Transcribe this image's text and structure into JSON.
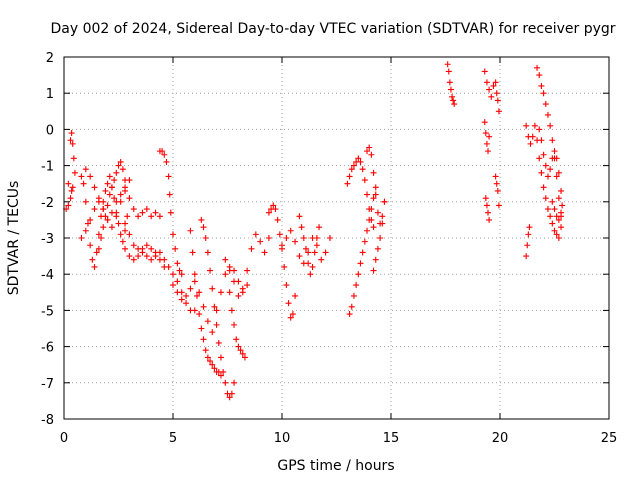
{
  "chart_data": {
    "type": "scatter",
    "title": "Day 002 of 2024, Sidereal Day-to-day VTEC variation (SDTVAR) for receiver pygr",
    "xlabel": "GPS time / hours",
    "ylabel": "SDTVAR / TECUs",
    "xlim": [
      0,
      25
    ],
    "ylim": [
      -8,
      2
    ],
    "xticks": [
      "0",
      "5",
      "10",
      "15",
      "20",
      "25"
    ],
    "yticks": [
      "2",
      "1",
      "0",
      "-1",
      "-2",
      "-3",
      "-4",
      "-5",
      "-6",
      "-7",
      "-8"
    ],
    "grid": true,
    "marker": "+",
    "color": "#ff0000",
    "series": [
      {
        "name": "s1",
        "x": [
          0.1,
          0.2,
          0.3,
          0.35,
          0.4,
          0.45,
          0.5
        ],
        "y": [
          -2.2,
          -1.5,
          -0.3,
          -0.1,
          -0.4,
          -0.8,
          -1.2
        ]
      },
      {
        "name": "s2",
        "x": [
          0.2,
          0.3,
          0.35,
          0.4
        ],
        "y": [
          -2.1,
          -1.9,
          -1.7,
          -1.6
        ]
      },
      {
        "name": "s3",
        "x": [
          0.8,
          0.9,
          1.0,
          1.1,
          1.2,
          1.3,
          1.4,
          1.5,
          1.6,
          1.7,
          1.8,
          1.9,
          2.0,
          2.1,
          2.2,
          2.3,
          2.4,
          2.5,
          2.6,
          2.7,
          2.8,
          2.9
        ],
        "y": [
          -1.3,
          -1.5,
          -2.0,
          -2.6,
          -3.2,
          -3.6,
          -3.8,
          -3.4,
          -2.9,
          -2.4,
          -2.0,
          -1.7,
          -1.5,
          -1.3,
          -1.6,
          -1.9,
          -2.3,
          -2.6,
          -2.9,
          -3.1,
          -2.8,
          -2.4
        ]
      },
      {
        "name": "s4",
        "x": [
          0.8,
          1.0,
          1.2,
          1.4,
          1.6,
          1.8,
          2.0,
          2.2,
          2.4,
          2.6,
          2.8,
          3.0
        ],
        "y": [
          -3.0,
          -2.8,
          -2.5,
          -2.2,
          -2.0,
          -2.2,
          -2.5,
          -2.7,
          -2.4,
          -2.0,
          -1.7,
          -1.4
        ]
      },
      {
        "name": "s5",
        "x": [
          1.0,
          1.2,
          1.4,
          1.6,
          1.8,
          2.0,
          2.2,
          2.4,
          2.6,
          2.8,
          3.0,
          3.2,
          3.4,
          3.6,
          3.8,
          4.0,
          4.2,
          4.4
        ],
        "y": [
          -1.1,
          -1.3,
          -1.6,
          -1.9,
          -2.2,
          -2.5,
          -2.3,
          -2.0,
          -1.8,
          -1.6,
          -1.9,
          -2.2,
          -2.4,
          -2.3,
          -2.2,
          -2.4,
          -2.3,
          -2.4
        ]
      },
      {
        "name": "s6",
        "x": [
          1.6,
          1.7,
          1.8,
          1.9,
          2.0,
          2.1,
          2.2,
          2.3,
          2.4,
          2.5,
          2.6,
          2.7,
          2.8
        ],
        "y": [
          -3.3,
          -3.0,
          -2.7,
          -2.4,
          -2.1,
          -1.8,
          -1.6,
          -1.4,
          -1.2,
          -1.0,
          -0.9,
          -1.1,
          -1.4
        ]
      },
      {
        "name": "s7",
        "x": [
          2.8,
          3.0,
          3.2,
          3.4,
          3.6,
          3.8,
          4.0,
          4.2,
          4.4,
          4.6,
          4.8,
          5.0,
          5.2,
          5.4,
          5.6,
          5.8,
          6.0
        ],
        "y": [
          -3.3,
          -3.5,
          -3.6,
          -3.5,
          -3.4,
          -3.5,
          -3.6,
          -3.5,
          -3.4,
          -3.6,
          -3.8,
          -4.0,
          -4.2,
          -4.5,
          -4.8,
          -5.0,
          -5.0
        ]
      },
      {
        "name": "s8",
        "x": [
          2.8,
          3.0,
          3.2,
          3.4,
          3.6,
          3.8,
          4.0,
          4.2,
          4.4,
          4.6
        ],
        "y": [
          -2.6,
          -2.9,
          -3.2,
          -3.3,
          -3.3,
          -3.2,
          -3.3,
          -3.4,
          -3.6,
          -3.8
        ]
      },
      {
        "name": "s9",
        "x": [
          4.4,
          4.5,
          4.6,
          4.7,
          4.8,
          4.85,
          4.9,
          5.0,
          5.1,
          5.2,
          5.3,
          5.4
        ],
        "y": [
          -0.6,
          -0.6,
          -0.7,
          -0.9,
          -1.3,
          -1.8,
          -2.3,
          -2.9,
          -3.3,
          -3.7,
          -3.9,
          -4.0
        ]
      },
      {
        "name": "s10",
        "x": [
          5.0,
          5.2,
          5.4,
          5.6,
          5.8,
          6.0,
          6.2,
          6.4,
          6.6,
          6.8,
          7.0,
          7.2,
          7.4,
          7.6,
          7.8,
          8.0,
          8.2,
          8.4
        ],
        "y": [
          -4.3,
          -4.5,
          -4.7,
          -4.6,
          -4.4,
          -4.2,
          -4.5,
          -4.9,
          -5.3,
          -5.6,
          -5.0,
          -4.5,
          -4.0,
          -3.8,
          -3.9,
          -4.2,
          -4.5,
          -4.3
        ]
      },
      {
        "name": "s11",
        "x": [
          5.8,
          5.9,
          6.0,
          6.1,
          6.2,
          6.3,
          6.4,
          6.5,
          6.6,
          6.7,
          6.8,
          6.9,
          7.0,
          7.1,
          7.2
        ],
        "y": [
          -2.8,
          -3.4,
          -4.0,
          -4.6,
          -5.1,
          -5.5,
          -5.8,
          -6.1,
          -6.3,
          -6.4,
          -6.5,
          -6.6,
          -6.7,
          -6.7,
          -6.8
        ]
      },
      {
        "name": "s12",
        "x": [
          6.3,
          6.4,
          6.5,
          6.6,
          6.7,
          6.8,
          6.9,
          7.0,
          7.1,
          7.2,
          7.3,
          7.4,
          7.5,
          7.6,
          7.7,
          7.8
        ],
        "y": [
          -2.5,
          -2.7,
          -3.0,
          -3.4,
          -3.9,
          -4.4,
          -4.9,
          -5.4,
          -5.9,
          -6.3,
          -6.7,
          -7.0,
          -7.3,
          -7.4,
          -7.3,
          -7.0
        ]
      },
      {
        "name": "s13",
        "x": [
          7.6,
          7.7,
          7.8,
          7.9,
          8.0,
          8.1,
          8.2,
          8.3
        ],
        "y": [
          -4.5,
          -5.0,
          -5.4,
          -5.8,
          -6.0,
          -6.1,
          -6.2,
          -6.3
        ]
      },
      {
        "name": "s14",
        "x": [
          7.4,
          7.6,
          7.8,
          8.0,
          8.2,
          8.4,
          8.6,
          8.8,
          9.0,
          9.2,
          9.4
        ],
        "y": [
          -3.6,
          -3.9,
          -4.2,
          -4.6,
          -4.4,
          -3.9,
          -3.3,
          -2.9,
          -3.1,
          -3.4,
          -3.0
        ]
      },
      {
        "name": "s15",
        "x": [
          9.4,
          9.5,
          9.6,
          9.7,
          9.8,
          9.9,
          10.0,
          10.1,
          10.2,
          10.3,
          10.4,
          10.5,
          10.6
        ],
        "y": [
          -2.3,
          -2.2,
          -2.1,
          -2.2,
          -2.5,
          -2.9,
          -3.3,
          -3.8,
          -4.3,
          -4.8,
          -5.2,
          -5.1,
          -4.6
        ]
      },
      {
        "name": "s16",
        "x": [
          10.0,
          10.2,
          10.4,
          10.6,
          10.8,
          11.0,
          11.2,
          11.4,
          11.6,
          11.8,
          12.0,
          12.2
        ],
        "y": [
          -3.2,
          -3.0,
          -2.8,
          -3.1,
          -3.5,
          -3.7,
          -3.4,
          -3.0,
          -3.2,
          -3.6,
          -3.4,
          -3.0
        ]
      },
      {
        "name": "s17",
        "x": [
          10.8,
          10.9,
          11.0,
          11.1,
          11.2,
          11.3,
          11.4,
          11.5,
          11.6,
          11.7
        ],
        "y": [
          -2.4,
          -2.7,
          -3.0,
          -3.3,
          -3.7,
          -4.0,
          -3.8,
          -3.4,
          -3.0,
          -2.7
        ]
      },
      {
        "name": "s18",
        "x": [
          13.0,
          13.1,
          13.2,
          13.3,
          13.4,
          13.5,
          13.6,
          13.7,
          13.8,
          13.9,
          14.0,
          14.1,
          14.2
        ],
        "y": [
          -1.5,
          -1.3,
          -1.1,
          -1.0,
          -0.9,
          -0.8,
          -0.9,
          -1.1,
          -1.4,
          -1.8,
          -2.2,
          -2.5,
          -2.7
        ]
      },
      {
        "name": "s19",
        "x": [
          13.1,
          13.2,
          13.3,
          13.4,
          13.5,
          13.6,
          13.7,
          13.8,
          13.9,
          14.0,
          14.1,
          14.2,
          14.3
        ],
        "y": [
          -5.1,
          -4.9,
          -4.6,
          -4.3,
          -4.0,
          -3.7,
          -3.4,
          -3.1,
          -2.8,
          -2.5,
          -2.2,
          -1.9,
          -1.6
        ]
      },
      {
        "name": "s20",
        "x": [
          13.9,
          14.0,
          14.1,
          14.2,
          14.3,
          14.4,
          14.5,
          14.6,
          14.7
        ],
        "y": [
          -0.6,
          -0.5,
          -0.7,
          -1.2,
          -1.8,
          -2.3,
          -2.6,
          -2.4,
          -2.0
        ]
      },
      {
        "name": "s21",
        "x": [
          14.2,
          14.3,
          14.4,
          14.5,
          14.6,
          14.7
        ],
        "y": [
          -3.9,
          -3.6,
          -3.3,
          -3.0,
          -2.6,
          -2.0
        ]
      },
      {
        "name": "s22",
        "x": [
          17.6,
          17.65,
          17.7,
          17.75,
          17.8,
          17.85,
          17.9
        ],
        "y": [
          1.8,
          1.6,
          1.3,
          1.1,
          0.9,
          0.8,
          0.7
        ]
      },
      {
        "name": "s23",
        "x": [
          19.3,
          19.4,
          19.5,
          19.6,
          19.7
        ],
        "y": [
          1.6,
          1.3,
          1.1,
          0.9,
          1.2
        ]
      },
      {
        "name": "s24",
        "x": [
          19.3,
          19.35,
          19.4,
          19.45,
          19.5
        ],
        "y": [
          0.2,
          -0.1,
          -0.4,
          -0.6,
          -0.2
        ]
      },
      {
        "name": "s25",
        "x": [
          19.35,
          19.4,
          19.45,
          19.5
        ],
        "y": [
          -1.9,
          -2.1,
          -2.3,
          -2.5
        ]
      },
      {
        "name": "s26",
        "x": [
          19.8,
          19.85,
          19.9,
          19.95
        ],
        "y": [
          1.3,
          1.0,
          0.8,
          0.5
        ]
      },
      {
        "name": "s27",
        "x": [
          19.8,
          19.85,
          19.9,
          19.95
        ],
        "y": [
          -1.3,
          -1.5,
          -1.7,
          -2.1
        ]
      },
      {
        "name": "s28",
        "x": [
          21.2,
          21.3,
          21.4,
          21.5,
          21.6,
          21.7,
          21.8,
          21.9,
          22.0,
          22.1,
          22.2,
          22.3,
          22.4,
          22.5,
          22.6,
          22.7,
          22.8
        ],
        "y": [
          0.1,
          -0.2,
          -0.4,
          -0.2,
          0.1,
          -0.3,
          -0.8,
          -1.2,
          -1.6,
          -1.9,
          -2.2,
          -2.4,
          -2.6,
          -2.8,
          -2.9,
          -3.0,
          -2.7
        ]
      },
      {
        "name": "s29",
        "x": [
          21.7,
          21.8,
          21.9,
          22.0,
          22.1,
          22.2,
          22.3,
          22.4,
          22.5,
          22.6,
          22.7,
          22.8
        ],
        "y": [
          1.7,
          1.5,
          1.2,
          1.0,
          0.7,
          0.4,
          0.1,
          -0.3,
          -0.8,
          -1.3,
          -1.9,
          -2.4
        ]
      },
      {
        "name": "s30",
        "x": [
          21.8,
          21.9,
          22.0,
          22.1,
          22.2,
          22.3,
          22.4,
          22.5,
          22.6,
          22.7,
          22.8
        ],
        "y": [
          0.0,
          -0.3,
          -0.7,
          -1.0,
          -1.3,
          -1.1,
          -0.8,
          -0.6,
          -0.8,
          -1.2,
          -1.7
        ]
      },
      {
        "name": "s31",
        "x": [
          21.2,
          21.25,
          21.3,
          21.35
        ],
        "y": [
          -3.5,
          -3.2,
          -2.9,
          -2.7
        ]
      },
      {
        "name": "s32",
        "x": [
          22.4,
          22.5,
          22.6,
          22.7,
          22.8,
          22.85
        ],
        "y": [
          -2.0,
          -2.2,
          -2.4,
          -2.5,
          -2.3,
          -2.1
        ]
      }
    ]
  }
}
